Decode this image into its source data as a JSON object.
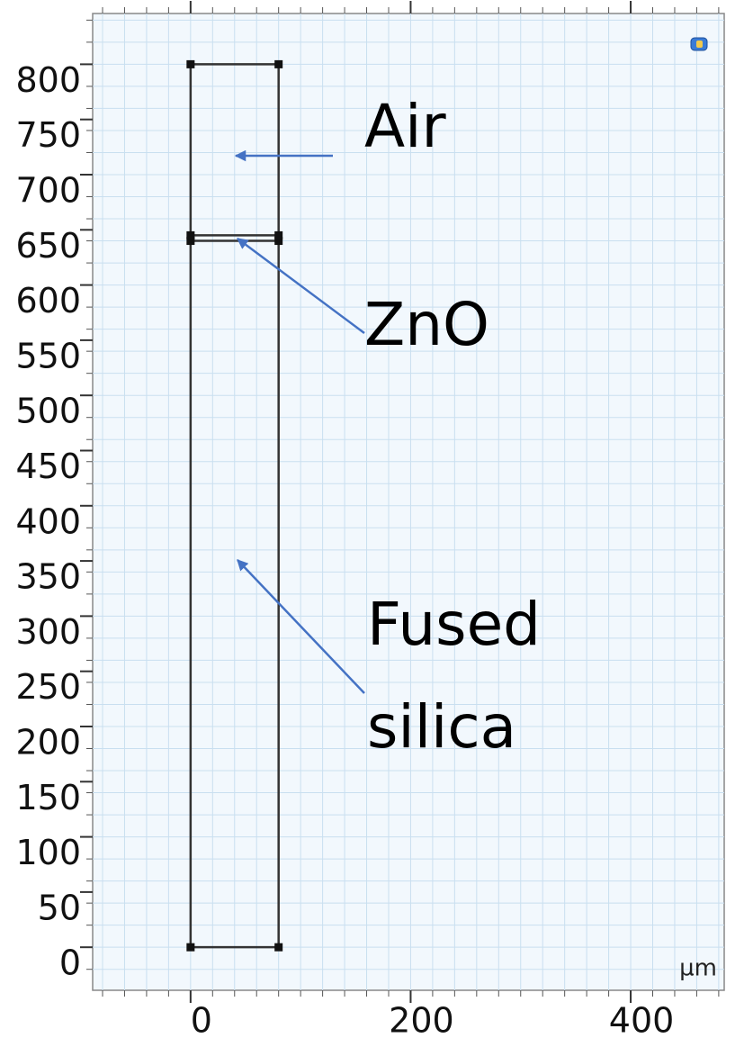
{
  "axes": {
    "xlim": [
      -89,
      485
    ],
    "ylim": [
      -39,
      846
    ],
    "xticks": [
      0,
      200,
      400
    ],
    "yticks": [
      0,
      50,
      100,
      150,
      200,
      250,
      300,
      350,
      400,
      450,
      500,
      550,
      600,
      650,
      700,
      750,
      800
    ],
    "unit": "µm",
    "grid": true,
    "grid_step": 20
  },
  "geometry": {
    "x": [
      0,
      80
    ],
    "boundaries": [
      0,
      640,
      645,
      800
    ]
  },
  "labels": [
    {
      "lines": [
        "Air"
      ]
    },
    {
      "lines": [
        "ZnO"
      ]
    },
    {
      "lines": [
        "Fused",
        "silica"
      ]
    }
  ]
}
